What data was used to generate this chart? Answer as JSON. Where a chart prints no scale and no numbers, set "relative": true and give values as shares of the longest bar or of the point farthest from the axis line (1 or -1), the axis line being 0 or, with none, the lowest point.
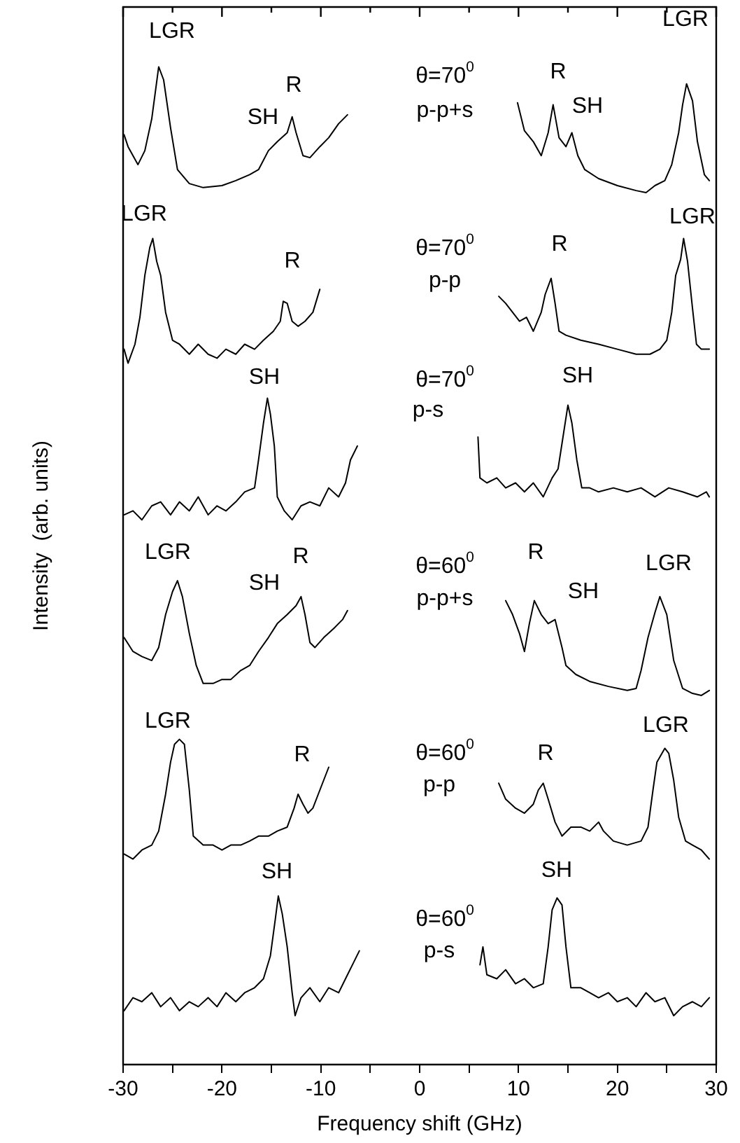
{
  "chart_data": {
    "type": "line",
    "relative": true,
    "xlabel": "Frequency shift (GHz)",
    "ylabel": "Intensity  (arb. units)",
    "legend": false,
    "grid": false,
    "marker": "none",
    "line_style": "solid",
    "xlim": [
      -30,
      30
    ],
    "xticks": [
      -30,
      {
        "value": -25,
        "label": null
      },
      -20,
      {
        "value": -15,
        "label": null
      },
      -10,
      {
        "value": -5,
        "label": null
      },
      0,
      {
        "value": 5,
        "label": null
      },
      10,
      {
        "value": 15,
        "label": null
      },
      20,
      {
        "value": 25,
        "label": null
      },
      30
    ],
    "series": [
      {
        "color": "#000000",
        "x": [
          -29.9,
          -29.5,
          -28.5,
          -27.8,
          -27.1,
          -26.4,
          -25.9,
          -25.2,
          -24.5,
          -23.3,
          -21.9,
          -20.0,
          -18.6,
          -17.2,
          -16.3,
          -15.3,
          -14.4,
          -13.4,
          -12.9,
          -12.5,
          -11.8,
          -11.1,
          -10.1,
          -9.2,
          -8.2,
          -7.3
        ],
        "values": [
          0.932,
          0.92,
          0.902,
          0.916,
          0.948,
          1,
          0.987,
          0.939,
          0.897,
          0.883,
          0.879,
          0.881,
          0.886,
          0.892,
          0.897,
          0.916,
          0.925,
          0.934,
          0.95,
          0.934,
          0.911,
          0.909,
          0.92,
          0.929,
          0.943,
          0.952
        ]
      },
      {
        "color": "#000000",
        "x": [
          9.9,
          10.6,
          11.5,
          12.3,
          13.0,
          13.5,
          14.1,
          14.8,
          15.4,
          16.0,
          16.7,
          18.1,
          20.0,
          21.9,
          22.9,
          23.8,
          24.8,
          25.5,
          26.2,
          26.6,
          27.0,
          27.6,
          28.1,
          28.8,
          29.3
        ],
        "values": [
          0.964,
          0.936,
          0.925,
          0.911,
          0.934,
          0.962,
          0.929,
          0.92,
          0.934,
          0.911,
          0.897,
          0.888,
          0.881,
          0.876,
          0.874,
          0.881,
          0.886,
          0.902,
          0.934,
          0.962,
          0.983,
          0.966,
          0.925,
          0.892,
          0.886
        ]
      },
      {
        "color": "#000000",
        "x": [
          -29.9,
          -29.5,
          -28.8,
          -28.3,
          -27.8,
          -27.3,
          -27.0,
          -26.6,
          -26.2,
          -25.7,
          -25.0,
          -24.3,
          -23.3,
          -22.4,
          -21.4,
          -20.5,
          -19.6,
          -18.6,
          -17.7,
          -16.7,
          -15.8,
          -14.8,
          -14.1,
          -13.8,
          -13.4,
          -12.9,
          -12.3,
          -11.6,
          -10.8,
          -10.1
        ],
        "values": [
          0.717,
          0.703,
          0.722,
          0.749,
          0.791,
          0.819,
          0.828,
          0.805,
          0.791,
          0.754,
          0.726,
          0.722,
          0.712,
          0.722,
          0.712,
          0.708,
          0.717,
          0.712,
          0.722,
          0.717,
          0.726,
          0.735,
          0.745,
          0.765,
          0.763,
          0.745,
          0.74,
          0.745,
          0.754,
          0.777
        ]
      },
      {
        "color": "#000000",
        "x": [
          8.0,
          8.7,
          9.4,
          10.1,
          10.8,
          11.5,
          12.3,
          12.7,
          13.3,
          13.7,
          14.1,
          14.8,
          16.3,
          18.1,
          20.0,
          21.9,
          23.3,
          24.3,
          25.0,
          25.5,
          25.9,
          26.4,
          26.7,
          27.1,
          27.6,
          28.0,
          28.5,
          29.3
        ],
        "values": [
          0.77,
          0.763,
          0.754,
          0.745,
          0.749,
          0.735,
          0.754,
          0.772,
          0.788,
          0.763,
          0.735,
          0.731,
          0.726,
          0.722,
          0.717,
          0.712,
          0.712,
          0.717,
          0.726,
          0.754,
          0.791,
          0.807,
          0.828,
          0.805,
          0.758,
          0.722,
          0.717,
          0.717
        ]
      },
      {
        "color": "#000000",
        "x": [
          -29.9,
          -29.0,
          -28.1,
          -27.1,
          -26.2,
          -25.2,
          -24.3,
          -23.3,
          -22.4,
          -21.4,
          -20.5,
          -19.6,
          -18.6,
          -17.7,
          -16.7,
          -16.3,
          -15.8,
          -15.4,
          -15.1,
          -14.7,
          -14.4,
          -13.7,
          -12.9,
          -12.0,
          -11.1,
          -10.1,
          -9.2,
          -8.2,
          -7.5,
          -7.0,
          -6.3
        ],
        "values": [
          0.551,
          0.555,
          0.546,
          0.56,
          0.564,
          0.551,
          0.564,
          0.555,
          0.569,
          0.551,
          0.56,
          0.555,
          0.564,
          0.574,
          0.578,
          0.606,
          0.643,
          0.668,
          0.652,
          0.62,
          0.569,
          0.555,
          0.546,
          0.56,
          0.564,
          0.56,
          0.578,
          0.569,
          0.583,
          0.606,
          0.62
        ]
      },
      {
        "color": "#000000",
        "x": [
          5.9,
          6.1,
          6.8,
          7.8,
          8.7,
          9.7,
          10.6,
          11.5,
          12.5,
          13.4,
          14.0,
          14.5,
          15.0,
          15.4,
          15.9,
          16.4,
          17.2,
          18.1,
          19.6,
          21.0,
          22.4,
          23.8,
          25.2,
          26.6,
          28.1,
          29.0,
          29.3
        ],
        "values": [
          0.629,
          0.588,
          0.583,
          0.588,
          0.578,
          0.583,
          0.574,
          0.583,
          0.569,
          0.588,
          0.597,
          0.629,
          0.661,
          0.643,
          0.606,
          0.578,
          0.578,
          0.574,
          0.578,
          0.574,
          0.578,
          0.569,
          0.578,
          0.574,
          0.569,
          0.574,
          0.569
        ]
      },
      {
        "color": "#000000",
        "x": [
          -29.9,
          -29.0,
          -28.1,
          -27.1,
          -26.4,
          -25.7,
          -25.0,
          -24.5,
          -24.0,
          -23.3,
          -22.6,
          -21.9,
          -20.9,
          -20.0,
          -19.1,
          -18.1,
          -17.2,
          -16.3,
          -15.3,
          -14.4,
          -13.4,
          -12.5,
          -12.0,
          -11.6,
          -11.1,
          -10.6,
          -9.7,
          -8.7,
          -7.8,
          -7.3
        ],
        "values": [
          0.428,
          0.414,
          0.409,
          0.405,
          0.418,
          0.451,
          0.474,
          0.485,
          0.469,
          0.432,
          0.4,
          0.382,
          0.382,
          0.386,
          0.386,
          0.395,
          0.4,
          0.414,
          0.428,
          0.442,
          0.451,
          0.46,
          0.469,
          0.451,
          0.423,
          0.418,
          0.428,
          0.437,
          0.446,
          0.455
        ]
      },
      {
        "color": "#000000",
        "x": [
          8.7,
          9.4,
          10.1,
          10.6,
          11.1,
          11.6,
          12.3,
          13.0,
          13.7,
          14.4,
          14.8,
          15.8,
          17.2,
          19.1,
          21.0,
          21.9,
          22.4,
          23.1,
          23.8,
          24.3,
          25.0,
          25.7,
          26.6,
          27.6,
          28.5,
          29.3
        ],
        "values": [
          0.465,
          0.451,
          0.432,
          0.414,
          0.442,
          0.465,
          0.451,
          0.442,
          0.446,
          0.418,
          0.4,
          0.391,
          0.384,
          0.379,
          0.375,
          0.377,
          0.395,
          0.428,
          0.453,
          0.469,
          0.451,
          0.405,
          0.377,
          0.372,
          0.37,
          0.375
        ]
      },
      {
        "color": "#000000",
        "x": [
          -29.9,
          -29.0,
          -28.1,
          -27.1,
          -26.4,
          -25.7,
          -25.2,
          -24.8,
          -24.3,
          -23.8,
          -23.3,
          -22.9,
          -21.9,
          -20.9,
          -20.0,
          -19.1,
          -18.1,
          -17.2,
          -16.3,
          -15.3,
          -14.4,
          -13.4,
          -12.7,
          -12.3,
          -11.8,
          -11.3,
          -10.8,
          -10.1,
          -9.2
        ],
        "values": [
          0.211,
          0.206,
          0.215,
          0.22,
          0.234,
          0.271,
          0.303,
          0.321,
          0.326,
          0.321,
          0.275,
          0.229,
          0.22,
          0.22,
          0.215,
          0.22,
          0.22,
          0.224,
          0.229,
          0.229,
          0.234,
          0.238,
          0.257,
          0.271,
          0.261,
          0.252,
          0.257,
          0.275,
          0.298
        ]
      },
      {
        "color": "#000000",
        "x": [
          8.0,
          8.7,
          9.7,
          10.6,
          11.5,
          12.0,
          12.5,
          13.0,
          13.7,
          14.4,
          15.3,
          16.3,
          17.2,
          18.1,
          18.6,
          19.6,
          21.0,
          22.4,
          23.1,
          23.6,
          24.0,
          24.8,
          25.2,
          25.7,
          26.2,
          26.9,
          27.6,
          28.5,
          29.3
        ],
        "values": [
          0.282,
          0.266,
          0.257,
          0.252,
          0.261,
          0.275,
          0.282,
          0.266,
          0.243,
          0.229,
          0.238,
          0.238,
          0.234,
          0.243,
          0.234,
          0.224,
          0.22,
          0.224,
          0.238,
          0.275,
          0.303,
          0.317,
          0.312,
          0.285,
          0.248,
          0.224,
          0.22,
          0.215,
          0.206
        ]
      },
      {
        "color": "#000000",
        "x": [
          -29.9,
          -29.0,
          -28.1,
          -27.1,
          -26.2,
          -25.2,
          -24.3,
          -23.3,
          -22.4,
          -21.4,
          -20.5,
          -19.6,
          -18.6,
          -17.7,
          -16.7,
          -15.8,
          -15.1,
          -14.6,
          -14.3,
          -13.9,
          -13.4,
          -12.9,
          -12.6,
          -12.0,
          -11.1,
          -10.1,
          -9.2,
          -8.2,
          -7.3,
          -6.6,
          -6.1
        ],
        "values": [
          0.054,
          0.067,
          0.063,
          0.072,
          0.058,
          0.067,
          0.054,
          0.063,
          0.058,
          0.067,
          0.058,
          0.072,
          0.063,
          0.072,
          0.077,
          0.086,
          0.109,
          0.146,
          0.169,
          0.151,
          0.118,
          0.072,
          0.049,
          0.067,
          0.077,
          0.063,
          0.077,
          0.072,
          0.09,
          0.104,
          0.114
        ]
      },
      {
        "color": "#000000",
        "x": [
          6.1,
          6.4,
          6.8,
          7.8,
          8.7,
          9.7,
          10.6,
          11.5,
          12.5,
          13.0,
          13.4,
          13.9,
          14.4,
          14.8,
          15.3,
          16.3,
          17.2,
          18.1,
          19.1,
          20.0,
          21.0,
          21.9,
          22.9,
          23.8,
          24.8,
          25.7,
          26.6,
          27.6,
          28.5,
          29.3
        ],
        "values": [
          0.1,
          0.118,
          0.09,
          0.086,
          0.095,
          0.081,
          0.086,
          0.077,
          0.081,
          0.118,
          0.155,
          0.167,
          0.16,
          0.118,
          0.077,
          0.077,
          0.072,
          0.067,
          0.072,
          0.063,
          0.067,
          0.058,
          0.072,
          0.063,
          0.067,
          0.049,
          0.058,
          0.063,
          0.058,
          0.067
        ]
      }
    ],
    "annotations": [
      "LGR",
      "SH",
      "R",
      "θ=70$^{0}$",
      "p-p+s",
      "R",
      "SH",
      "LGR",
      "LGR",
      "R",
      "θ=70$^{0}$",
      "p-p",
      "R",
      "LGR",
      "SH",
      "θ=70$^{0}$",
      "p-s",
      "SH",
      "LGR",
      "SH",
      "R",
      "θ=60$^{0}$",
      "p-p+s",
      "R",
      "SH",
      "LGR",
      "LGR",
      "R",
      "θ=60$^{0}$",
      "p-p",
      "R",
      "LGR",
      "SH",
      "θ=60$^{0}$",
      "p-s",
      "SH"
    ]
  }
}
